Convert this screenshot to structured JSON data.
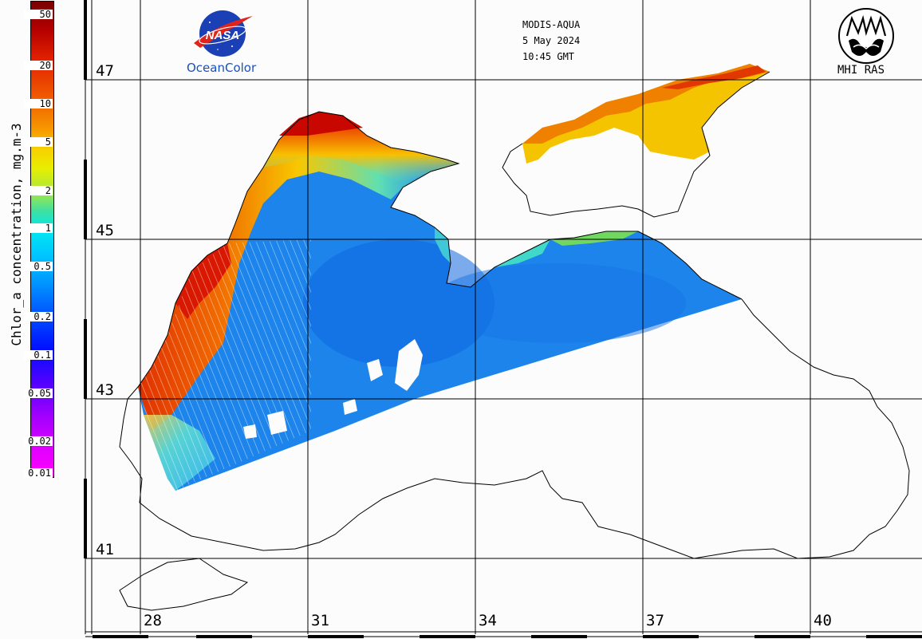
{
  "header": {
    "sensor": "MODIS-AQUA",
    "date": "5 May 2024",
    "time": "10:45 GMT"
  },
  "logos": {
    "nasa_logo_text": "NASA",
    "ocean_color_text": "OceanColor",
    "mhi_text": "MHI RAS"
  },
  "colorbar": {
    "label": "Chlor_a concentration, mg.m-3",
    "ticks": [
      "50",
      "20",
      "10",
      "5",
      "2",
      "1",
      "0.5",
      "0.2",
      "0.1",
      "0.05",
      "0.02",
      "0.01"
    ],
    "colors": {
      "high": "#7a0000",
      "mid": "#00e8f0",
      "low": "#ff00ff"
    }
  },
  "latitude_labels": [
    "47",
    "45",
    "43",
    "41"
  ],
  "longitude_labels": [
    "28",
    "31",
    "34",
    "37",
    "40"
  ],
  "map_colors": {
    "sea_main": "#1a7fe8",
    "coast_high": "#e03000",
    "coast_mid": "#f7b500",
    "background": "#fcfcfc"
  }
}
